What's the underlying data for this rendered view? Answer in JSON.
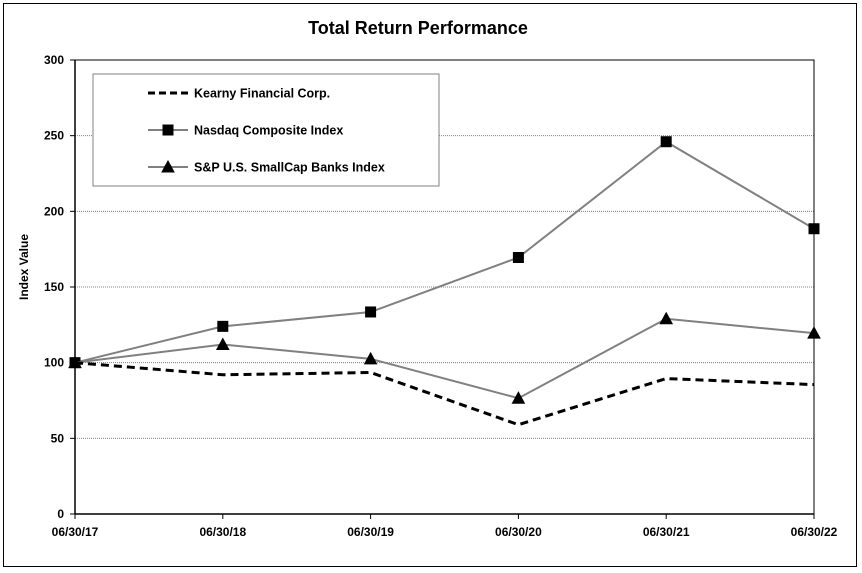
{
  "chart_data": {
    "type": "line",
    "title": "Total Return Performance",
    "xlabel": "",
    "ylabel": "Index Value",
    "categories": [
      "06/30/17",
      "06/30/18",
      "06/30/19",
      "06/30/20",
      "06/30/21",
      "06/30/22"
    ],
    "ylim": [
      0,
      300
    ],
    "yticks": [
      0,
      50,
      100,
      150,
      200,
      250,
      300
    ],
    "grid": "horizontal dotted",
    "legend_position": "top-left",
    "series": [
      {
        "name": "Kearny Financial Corp.",
        "values": [
          100,
          92,
          93.5,
          59,
          89.5,
          85.5
        ],
        "color": "#000000",
        "style": "dashed",
        "marker": "none"
      },
      {
        "name": "Nasdaq Composite Index",
        "values": [
          100,
          124,
          133.5,
          169.5,
          246,
          188.5
        ],
        "color": "#808080",
        "style": "solid",
        "marker": "square"
      },
      {
        "name": "S&P U.S. SmallCap Banks Index",
        "values": [
          100,
          112,
          102.5,
          76.5,
          129,
          119.5
        ],
        "color": "#808080",
        "style": "solid",
        "marker": "triangle"
      }
    ]
  }
}
